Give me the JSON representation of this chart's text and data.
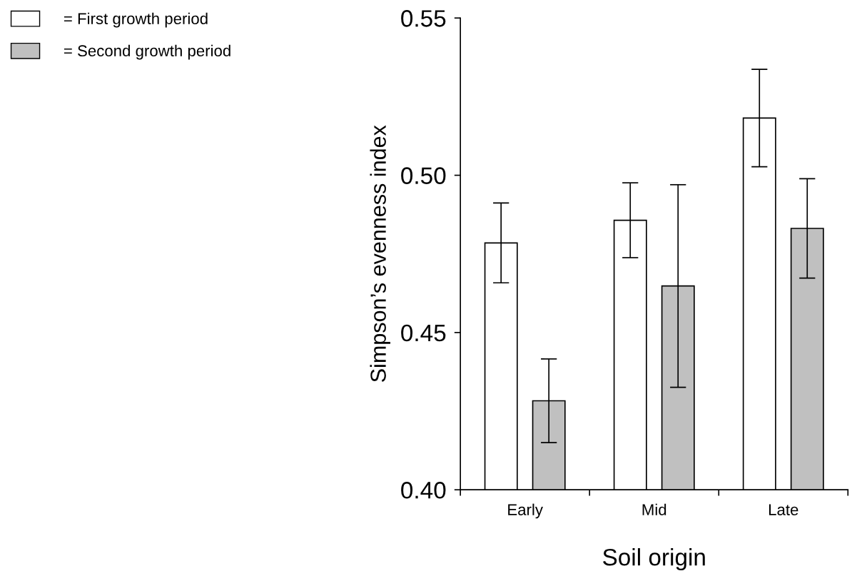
{
  "chart_data": {
    "type": "bar",
    "xlabel": "Soil origin",
    "ylabel": "Simpson’s evenness index",
    "categories": [
      "Early",
      "Mid",
      "Late"
    ],
    "series": [
      {
        "name": "= First growth period",
        "color": "#ffffff",
        "values": [
          0.4785,
          0.4857,
          0.5182
        ],
        "errors": [
          0.0127,
          0.0119,
          0.0155
        ]
      },
      {
        "name": "= Second growth period",
        "color": "#c0c0c0",
        "values": [
          0.4283,
          0.4648,
          0.4831
        ],
        "errors": [
          0.0133,
          0.0322,
          0.0158
        ]
      }
    ],
    "ylim": [
      0.4,
      0.55
    ],
    "yticks": [
      {
        "value": 0.4,
        "label": "0.40"
      },
      {
        "value": 0.45,
        "label": "0.45"
      },
      {
        "value": 0.5,
        "label": "0.50"
      },
      {
        "value": 0.55,
        "label": "0.55"
      }
    ],
    "grid": false,
    "legend": "top left"
  }
}
